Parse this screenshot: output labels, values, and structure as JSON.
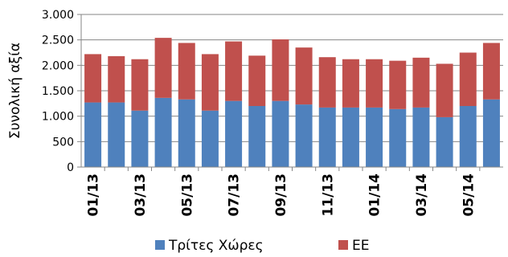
{
  "chart_data": {
    "type": "bar",
    "stacked": true,
    "ylabel": "Συνολική αξία",
    "ylim": [
      0,
      3000
    ],
    "yticks": [
      0,
      500,
      1000,
      1500,
      2000,
      2500,
      3000
    ],
    "ytick_labels": [
      "0",
      "500",
      "1.000",
      "1.500",
      "2.000",
      "2.500",
      "3.000"
    ],
    "categories": [
      "01/13",
      "02/13",
      "03/13",
      "04/13",
      "05/13",
      "06/13",
      "07/13",
      "08/13",
      "09/13",
      "10/13",
      "11/13",
      "12/13",
      "01/14",
      "02/14",
      "03/14",
      "04/14",
      "05/14",
      "06/14"
    ],
    "xtick_labels": [
      "01/13",
      "",
      "03/13",
      "",
      "05/13",
      "",
      "07/13",
      "",
      "09/13",
      "",
      "11/13",
      "",
      "01/14",
      "",
      "03/14",
      "",
      "05/14",
      ""
    ],
    "series": [
      {
        "name": "Τρίτες Χώρες",
        "color": "#4F81BD",
        "values": [
          1270,
          1270,
          1110,
          1360,
          1330,
          1110,
          1300,
          1200,
          1300,
          1230,
          1170,
          1170,
          1170,
          1140,
          1170,
          980,
          1200,
          1330
        ]
      },
      {
        "name": "ΕΕ",
        "color": "#C0504D",
        "values": [
          950,
          910,
          1010,
          1180,
          1110,
          1110,
          1170,
          990,
          1210,
          1120,
          990,
          950,
          950,
          950,
          980,
          1050,
          1050,
          1110
        ]
      }
    ],
    "grid": true,
    "legend": "bottom"
  }
}
